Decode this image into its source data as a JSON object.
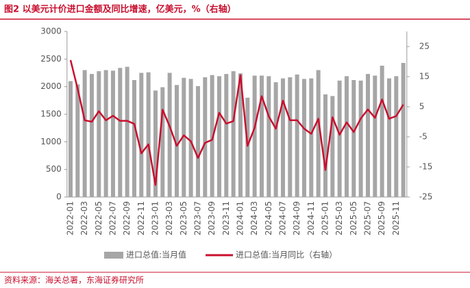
{
  "chart_data": {
    "type": "bar_line",
    "title": "图2 以美元计价进口金额及同比增速，亿美元，%（右轴）",
    "source": "资料来源：海关总署，东海证券研究所",
    "categories": [
      "2022-01",
      null,
      "2022-03",
      null,
      "2022-05",
      null,
      "2022-07",
      null,
      "2022-09",
      null,
      "2022-11",
      null,
      "2023-01",
      null,
      "2023-03",
      null,
      "2023-05",
      null,
      "2023-07",
      null,
      "2023-09",
      null,
      "2023-11",
      null,
      "2024-01",
      null,
      "2024-03",
      null,
      "2024-05",
      null,
      "2024-07",
      null,
      "2024-09",
      null,
      "2024-11",
      null,
      "2025-01",
      null,
      "2025-03",
      null,
      "2025-05",
      null,
      "2025-07",
      null,
      "2025-09",
      null,
      "2025-11",
      null
    ],
    "series": [
      {
        "name": "进口总值:当月值",
        "type": "bar",
        "color": "#a6a6a6",
        "values": [
          2100,
          2040,
          2300,
          2230,
          2280,
          2300,
          2290,
          2340,
          2360,
          2120,
          2250,
          2260,
          1930,
          1990,
          2250,
          2030,
          2160,
          2140,
          2010,
          2170,
          2210,
          2190,
          2230,
          2280,
          2240,
          1800,
          2200,
          2200,
          2190,
          2080,
          2150,
          2170,
          2220,
          2140,
          2150,
          2300,
          1860,
          1830,
          2110,
          2190,
          2120,
          2110,
          2230,
          2200,
          2380,
          2150,
          2190,
          2430
        ]
      },
      {
        "name": "进口总值:当月同比（右轴）",
        "type": "line",
        "axis": "y2",
        "color": "#c8102e",
        "values": [
          20.5,
          11,
          0.5,
          0,
          3.5,
          0.5,
          2,
          0.3,
          0.3,
          -0.7,
          -10.5,
          -7.5,
          -21,
          4,
          -1.5,
          -8,
          -4.5,
          -6.5,
          -12,
          -7,
          -6,
          3,
          -0.6,
          0.2,
          15.5,
          -8,
          -2,
          8.5,
          1.8,
          -2.3,
          7,
          0.5,
          0.5,
          -2.3,
          -4,
          1,
          -16,
          1.5,
          -4.3,
          -0.2,
          -3.4,
          1.1,
          4.1,
          1.3,
          7.4,
          1,
          1.9,
          5.7
        ]
      }
    ],
    "ylim": [
      0,
      3000
    ],
    "yticks": [
      0,
      500,
      1000,
      1500,
      2000,
      2500,
      3000
    ],
    "y2lim": [
      -25,
      30
    ],
    "y2ticks": [
      -25,
      -15,
      -5,
      5,
      15,
      25
    ],
    "legend": "bottom"
  }
}
